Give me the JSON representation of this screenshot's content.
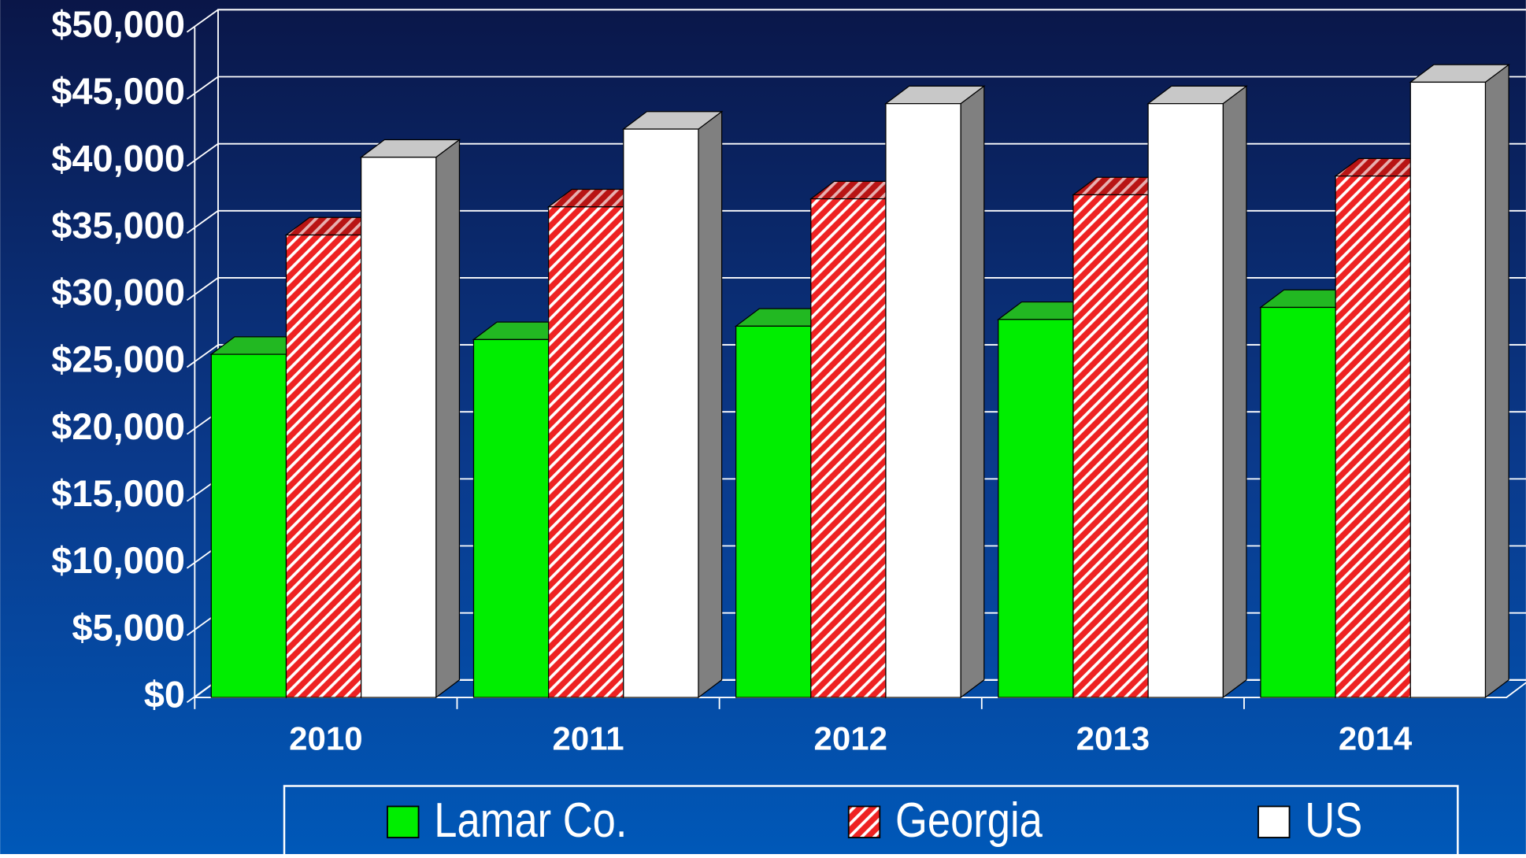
{
  "chart_data": {
    "type": "bar3d",
    "categories": [
      "2010",
      "2011",
      "2012",
      "2013",
      "2014"
    ],
    "series": [
      {
        "name": "Lamar Co.",
        "color": "#00ee00",
        "values": [
          25600,
          26700,
          27700,
          28200,
          29100
        ]
      },
      {
        "name": "Georgia",
        "color": "#ee2222",
        "values": [
          34500,
          36600,
          37200,
          37500,
          38900
        ]
      },
      {
        "name": "US",
        "color": "#ffffff",
        "values": [
          40300,
          42400,
          44300,
          44300,
          45900
        ]
      }
    ],
    "ylim": [
      0,
      50000
    ],
    "yticks": [
      {
        "value": 0,
        "label": "$0"
      },
      {
        "value": 5000,
        "label": "$5,000"
      },
      {
        "value": 10000,
        "label": "$10,000"
      },
      {
        "value": 15000,
        "label": "$15,000"
      },
      {
        "value": 20000,
        "label": "$20,000"
      },
      {
        "value": 25000,
        "label": "$25,000"
      },
      {
        "value": 30000,
        "label": "$30,000"
      },
      {
        "value": 35000,
        "label": "$35,000"
      },
      {
        "value": 40000,
        "label": "$40,000"
      },
      {
        "value": 45000,
        "label": "$45,000"
      },
      {
        "value": 50000,
        "label": "$50,000"
      }
    ],
    "grid": true,
    "legend": "bottom"
  }
}
